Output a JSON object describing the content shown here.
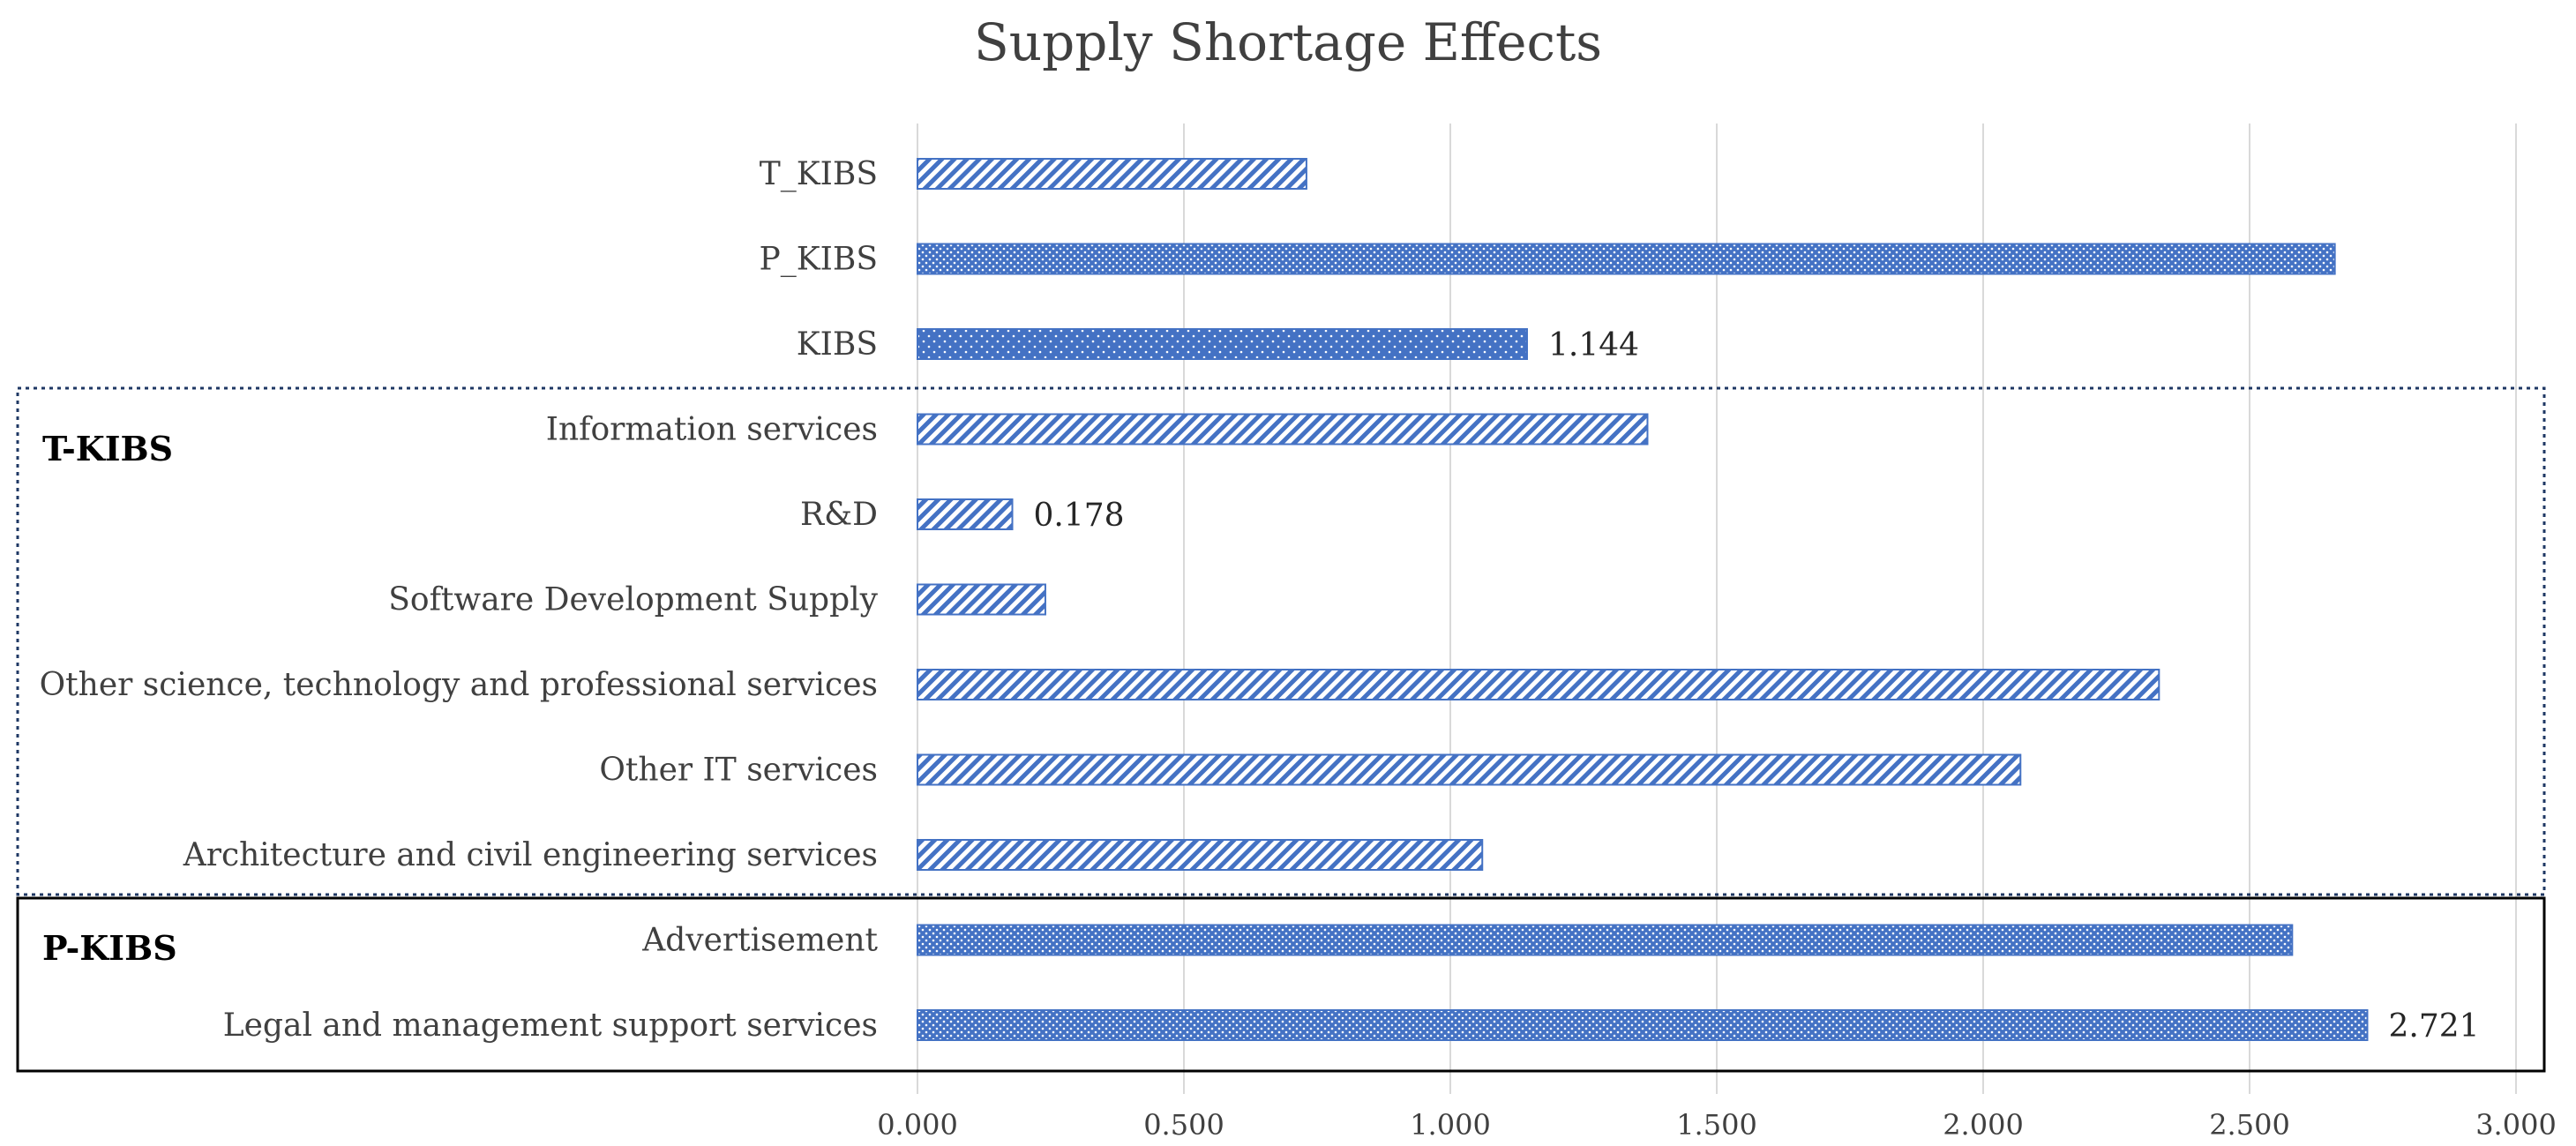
{
  "chart_data": {
    "type": "bar",
    "orientation": "horizontal",
    "title": "Supply Shortage Effects",
    "xlabel": "",
    "ylabel": "",
    "xlim": [
      0,
      3.0
    ],
    "x_ticks": [
      "0.000",
      "0.500",
      "1.000",
      "1.500",
      "2.000",
      "2.500",
      "3.000"
    ],
    "grid": true,
    "bar_color": "#4472C4",
    "categories": [
      "T_KIBS",
      "P_KIBS",
      "KIBS",
      "Information services",
      "R&D",
      "Software Development Supply",
      "Other science, technology and professional services",
      "Other IT services",
      "Architecture and civil engineering services",
      "Advertisement",
      "Legal and management support services"
    ],
    "values": [
      0.73,
      2.66,
      1.144,
      1.37,
      0.178,
      0.24,
      2.33,
      2.07,
      1.06,
      2.58,
      2.721
    ],
    "patterns": [
      "diag",
      "cross",
      "dots",
      "diag",
      "diag",
      "diag",
      "diag",
      "diag",
      "diag",
      "cross",
      "cross"
    ],
    "data_labels": [
      {
        "category": "KIBS",
        "text": "1.144"
      },
      {
        "category": "R&D",
        "text": "0.178"
      },
      {
        "category": "Legal and management support services",
        "text": "2.721"
      }
    ],
    "groups": [
      {
        "label": "T-KIBS",
        "style": "dotted"
      },
      {
        "label": "P-KIBS",
        "style": "solid"
      }
    ]
  }
}
